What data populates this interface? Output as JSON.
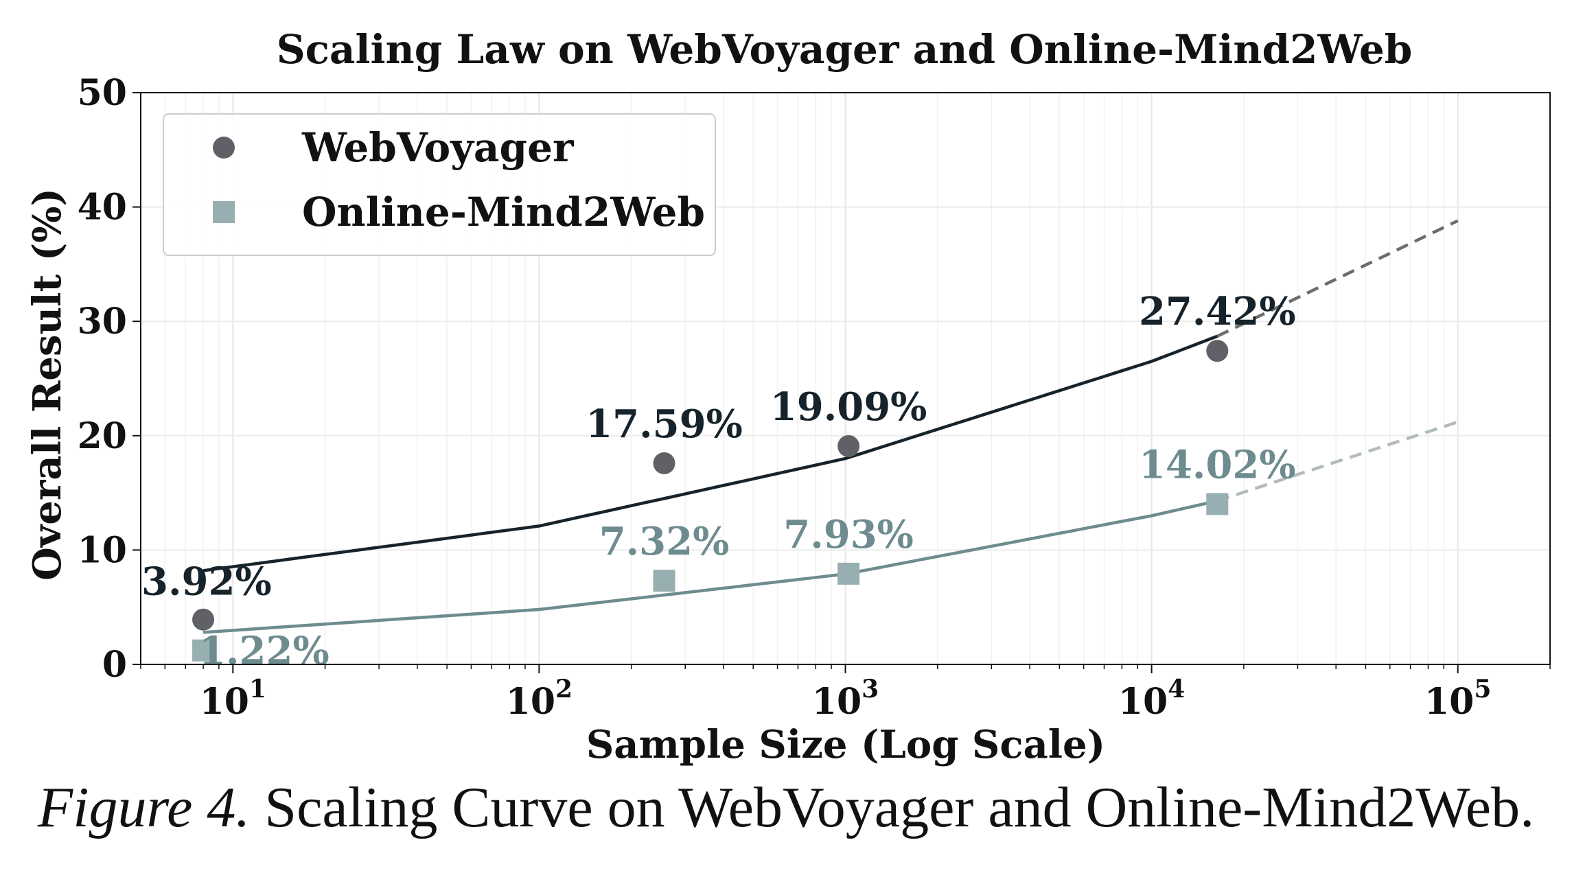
{
  "caption": {
    "figure_number": "Figure 4.",
    "text": "Scaling Curve on WebVoyager and Online-Mind2Web."
  },
  "chart_data": {
    "type": "scatter",
    "title": "Scaling Law on WebVoyager and Online-Mind2Web",
    "xlabel": "Sample Size (Log Scale)",
    "ylabel": "Overall Result (%)",
    "x_scale": "log",
    "xlim": [
      5,
      200000
    ],
    "ylim": [
      0,
      50
    ],
    "x_ticks": [
      {
        "value": 10,
        "base": "10",
        "exp": "1"
      },
      {
        "value": 100,
        "base": "10",
        "exp": "2"
      },
      {
        "value": 1000,
        "base": "10",
        "exp": "3"
      },
      {
        "value": 10000,
        "base": "10",
        "exp": "4"
      },
      {
        "value": 100000,
        "base": "10",
        "exp": "5"
      }
    ],
    "y_ticks": [
      "0",
      "10",
      "20",
      "30",
      "40",
      "50"
    ],
    "grid": true,
    "legend_position": "top-left",
    "series": [
      {
        "name": "WebVoyager",
        "marker": "circle",
        "color": "#5f6166",
        "label_color": "#17232b",
        "fit_color": "#17232b",
        "extrapolation_color": "#6d6d6d",
        "points": [
          {
            "x": 8,
            "y": 3.92,
            "label": "3.92%"
          },
          {
            "x": 256,
            "y": 17.59,
            "label": "17.59%"
          },
          {
            "x": 1024,
            "y": 19.09,
            "label": "19.09%"
          },
          {
            "x": 16384,
            "y": 27.42,
            "label": "27.42%"
          }
        ],
        "fit": [
          {
            "x": 8,
            "y": 8.2
          },
          {
            "x": 100,
            "y": 12.1
          },
          {
            "x": 1000,
            "y": 18.0
          },
          {
            "x": 10000,
            "y": 26.5
          },
          {
            "x": 16384,
            "y": 28.7
          },
          {
            "x": 100000,
            "y": 38.8
          }
        ]
      },
      {
        "name": "Online-Mind2Web",
        "marker": "square",
        "color": "#97afb1",
        "label_color": "#6e8c8f",
        "fit_color": "#6e8c8f",
        "extrapolation_color": "#b2bdb9",
        "points": [
          {
            "x": 8,
            "y": 1.22,
            "label": "1.22%"
          },
          {
            "x": 256,
            "y": 7.32,
            "label": "7.32%"
          },
          {
            "x": 1024,
            "y": 7.93,
            "label": "7.93%"
          },
          {
            "x": 16384,
            "y": 14.02,
            "label": "14.02%"
          }
        ],
        "fit": [
          {
            "x": 8,
            "y": 2.8
          },
          {
            "x": 100,
            "y": 4.8
          },
          {
            "x": 1000,
            "y": 7.9
          },
          {
            "x": 10000,
            "y": 13.0
          },
          {
            "x": 16384,
            "y": 14.3
          },
          {
            "x": 100000,
            "y": 21.2
          }
        ]
      }
    ]
  }
}
